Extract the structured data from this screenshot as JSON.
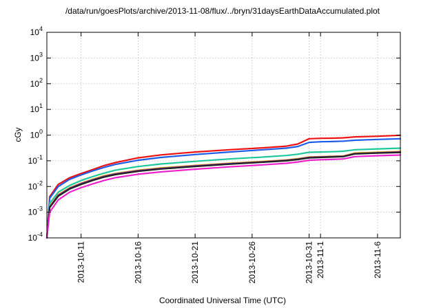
{
  "chart_data": {
    "type": "line",
    "title": "/data/run/goesPlots/archive/2013-11-08/flux/../bryn/31daysEarthDataAccumulated.plot",
    "xlabel": "Coordinated Universal Time (UTC)",
    "ylabel": "cGy",
    "y_scale": "log",
    "ylim": [
      0.0001,
      10000
    ],
    "xlim": [
      "2013-10-08",
      "2013-11-08"
    ],
    "grid": true,
    "legend": "none",
    "y_ticks": [
      {
        "base": "10",
        "exp": "-4",
        "value": 0.0001
      },
      {
        "base": "10",
        "exp": "-3",
        "value": 0.001
      },
      {
        "base": "10",
        "exp": "-2",
        "value": 0.01
      },
      {
        "base": "10",
        "exp": "-1",
        "value": 0.1
      },
      {
        "base": "10",
        "exp": "0",
        "value": 1
      },
      {
        "base": "10",
        "exp": "1",
        "value": 10
      },
      {
        "base": "10",
        "exp": "2",
        "value": 100
      },
      {
        "base": "10",
        "exp": "3",
        "value": 1000
      },
      {
        "base": "10",
        "exp": "4",
        "value": 10000
      }
    ],
    "x_ticks": [
      {
        "label": "2013-10-11",
        "date": "2013-10-11"
      },
      {
        "label": "2013-10-16",
        "date": "2013-10-16"
      },
      {
        "label": "2013-10-21",
        "date": "2013-10-21"
      },
      {
        "label": "2013-10-26",
        "date": "2013-10-26"
      },
      {
        "label": "2013-10-31",
        "date": "2013-10-31"
      },
      {
        "label": "2013-11-1",
        "date": "2013-11-01"
      },
      {
        "label": "2013-11-6",
        "date": "2013-11-06"
      }
    ],
    "series": [
      {
        "color": "#ee1111",
        "points": [
          [
            "2013-10-08",
            0.0001
          ],
          [
            "2013-10-08T06:00",
            0.004
          ],
          [
            "2013-10-09",
            0.012
          ],
          [
            "2013-10-10",
            0.022
          ],
          [
            "2013-10-11",
            0.032
          ],
          [
            "2013-10-12",
            0.045
          ],
          [
            "2013-10-13",
            0.065
          ],
          [
            "2013-10-14",
            0.085
          ],
          [
            "2013-10-16",
            0.13
          ],
          [
            "2013-10-18",
            0.17
          ],
          [
            "2013-10-21",
            0.22
          ],
          [
            "2013-10-24",
            0.27
          ],
          [
            "2013-10-27",
            0.32
          ],
          [
            "2013-10-29",
            0.37
          ],
          [
            "2013-10-30",
            0.45
          ],
          [
            "2013-10-31",
            0.72
          ],
          [
            "2013-11-01",
            0.75
          ],
          [
            "2013-11-02",
            0.76
          ],
          [
            "2013-11-03",
            0.78
          ],
          [
            "2013-11-04",
            0.85
          ],
          [
            "2013-11-06",
            0.9
          ],
          [
            "2013-11-08",
            0.98
          ]
        ]
      },
      {
        "color": "#1e5be6",
        "points": [
          [
            "2013-10-08",
            0.0001
          ],
          [
            "2013-10-08T06:00",
            0.0035
          ],
          [
            "2013-10-09",
            0.01
          ],
          [
            "2013-10-10",
            0.019
          ],
          [
            "2013-10-11",
            0.028
          ],
          [
            "2013-10-12",
            0.04
          ],
          [
            "2013-10-13",
            0.055
          ],
          [
            "2013-10-14",
            0.072
          ],
          [
            "2013-10-16",
            0.105
          ],
          [
            "2013-10-18",
            0.135
          ],
          [
            "2013-10-21",
            0.175
          ],
          [
            "2013-10-24",
            0.22
          ],
          [
            "2013-10-27",
            0.27
          ],
          [
            "2013-10-29",
            0.31
          ],
          [
            "2013-10-30",
            0.36
          ],
          [
            "2013-10-31",
            0.52
          ],
          [
            "2013-11-01",
            0.55
          ],
          [
            "2013-11-02",
            0.56
          ],
          [
            "2013-11-03",
            0.58
          ],
          [
            "2013-11-04",
            0.63
          ],
          [
            "2013-11-06",
            0.68
          ],
          [
            "2013-11-08",
            0.72
          ]
        ]
      },
      {
        "color": "#1dc79b",
        "points": [
          [
            "2013-10-08",
            0.0001
          ],
          [
            "2013-10-08T06:00",
            0.0022
          ],
          [
            "2013-10-09",
            0.006
          ],
          [
            "2013-10-10",
            0.011
          ],
          [
            "2013-10-11",
            0.017
          ],
          [
            "2013-10-12",
            0.024
          ],
          [
            "2013-10-13",
            0.033
          ],
          [
            "2013-10-14",
            0.043
          ],
          [
            "2013-10-16",
            0.06
          ],
          [
            "2013-10-18",
            0.075
          ],
          [
            "2013-10-21",
            0.095
          ],
          [
            "2013-10-24",
            0.118
          ],
          [
            "2013-10-27",
            0.14
          ],
          [
            "2013-10-29",
            0.16
          ],
          [
            "2013-10-30",
            0.18
          ],
          [
            "2013-10-31",
            0.215
          ],
          [
            "2013-11-01",
            0.22
          ],
          [
            "2013-11-02",
            0.225
          ],
          [
            "2013-11-03",
            0.235
          ],
          [
            "2013-11-04",
            0.27
          ],
          [
            "2013-11-06",
            0.29
          ],
          [
            "2013-11-08",
            0.31
          ]
        ]
      },
      {
        "color": "#e0b000",
        "points": [
          [
            "2013-10-08",
            0.0001
          ],
          [
            "2013-10-08T06:00",
            0.0017
          ],
          [
            "2013-10-09",
            0.0048
          ],
          [
            "2013-10-10",
            0.009
          ],
          [
            "2013-10-11",
            0.0135
          ],
          [
            "2013-10-12",
            0.019
          ],
          [
            "2013-10-13",
            0.026
          ],
          [
            "2013-10-14",
            0.032
          ],
          [
            "2013-10-16",
            0.043
          ],
          [
            "2013-10-18",
            0.053
          ],
          [
            "2013-10-21",
            0.066
          ],
          [
            "2013-10-24",
            0.08
          ],
          [
            "2013-10-27",
            0.095
          ],
          [
            "2013-10-29",
            0.108
          ],
          [
            "2013-10-30",
            0.12
          ],
          [
            "2013-10-31",
            0.14
          ],
          [
            "2013-11-01",
            0.145
          ],
          [
            "2013-11-02",
            0.15
          ],
          [
            "2013-11-03",
            0.155
          ],
          [
            "2013-11-04",
            0.2
          ],
          [
            "2013-11-06",
            0.215
          ],
          [
            "2013-11-08",
            0.23
          ]
        ]
      },
      {
        "color": "#6a1fb0",
        "points": [
          [
            "2013-10-08",
            0.0001
          ],
          [
            "2013-10-08T06:00",
            0.0016
          ],
          [
            "2013-10-09",
            0.0045
          ],
          [
            "2013-10-10",
            0.0085
          ],
          [
            "2013-10-11",
            0.0128
          ],
          [
            "2013-10-12",
            0.018
          ],
          [
            "2013-10-13",
            0.0245
          ],
          [
            "2013-10-14",
            0.0305
          ],
          [
            "2013-10-16",
            0.041
          ],
          [
            "2013-10-18",
            0.05
          ],
          [
            "2013-10-21",
            0.063
          ],
          [
            "2013-10-24",
            0.077
          ],
          [
            "2013-10-27",
            0.091
          ],
          [
            "2013-10-29",
            0.104
          ],
          [
            "2013-10-30",
            0.116
          ],
          [
            "2013-10-31",
            0.135
          ],
          [
            "2013-11-01",
            0.14
          ],
          [
            "2013-11-02",
            0.145
          ],
          [
            "2013-11-03",
            0.15
          ],
          [
            "2013-11-04",
            0.19
          ],
          [
            "2013-11-06",
            0.205
          ],
          [
            "2013-11-08",
            0.22
          ]
        ]
      },
      {
        "color": "#222222",
        "points": [
          [
            "2013-10-08",
            0.0001
          ],
          [
            "2013-10-08T06:00",
            0.0015
          ],
          [
            "2013-10-09",
            0.0042
          ],
          [
            "2013-10-10",
            0.008
          ],
          [
            "2013-10-11",
            0.012
          ],
          [
            "2013-10-12",
            0.017
          ],
          [
            "2013-10-13",
            0.023
          ],
          [
            "2013-10-14",
            0.029
          ],
          [
            "2013-10-16",
            0.039
          ],
          [
            "2013-10-18",
            0.048
          ],
          [
            "2013-10-21",
            0.06
          ],
          [
            "2013-10-24",
            0.074
          ],
          [
            "2013-10-27",
            0.088
          ],
          [
            "2013-10-29",
            0.1
          ],
          [
            "2013-10-30",
            0.112
          ],
          [
            "2013-10-31",
            0.13
          ],
          [
            "2013-11-01",
            0.135
          ],
          [
            "2013-11-02",
            0.14
          ],
          [
            "2013-11-03",
            0.145
          ],
          [
            "2013-11-04",
            0.185
          ],
          [
            "2013-11-06",
            0.2
          ],
          [
            "2013-11-08",
            0.21
          ]
        ]
      },
      {
        "color": "#ee22cc",
        "points": [
          [
            "2013-10-08",
            0.0001
          ],
          [
            "2013-10-08T06:00",
            0.001
          ],
          [
            "2013-10-09",
            0.003
          ],
          [
            "2013-10-10",
            0.006
          ],
          [
            "2013-10-11",
            0.009
          ],
          [
            "2013-10-12",
            0.0125
          ],
          [
            "2013-10-13",
            0.017
          ],
          [
            "2013-10-14",
            0.022
          ],
          [
            "2013-10-16",
            0.03
          ],
          [
            "2013-10-18",
            0.037
          ],
          [
            "2013-10-21",
            0.047
          ],
          [
            "2013-10-24",
            0.058
          ],
          [
            "2013-10-27",
            0.07
          ],
          [
            "2013-10-29",
            0.08
          ],
          [
            "2013-10-30",
            0.09
          ],
          [
            "2013-10-31",
            0.105
          ],
          [
            "2013-11-01",
            0.11
          ],
          [
            "2013-11-02",
            0.113
          ],
          [
            "2013-11-03",
            0.118
          ],
          [
            "2013-11-04",
            0.145
          ],
          [
            "2013-11-06",
            0.158
          ],
          [
            "2013-11-08",
            0.168
          ]
        ]
      }
    ]
  }
}
